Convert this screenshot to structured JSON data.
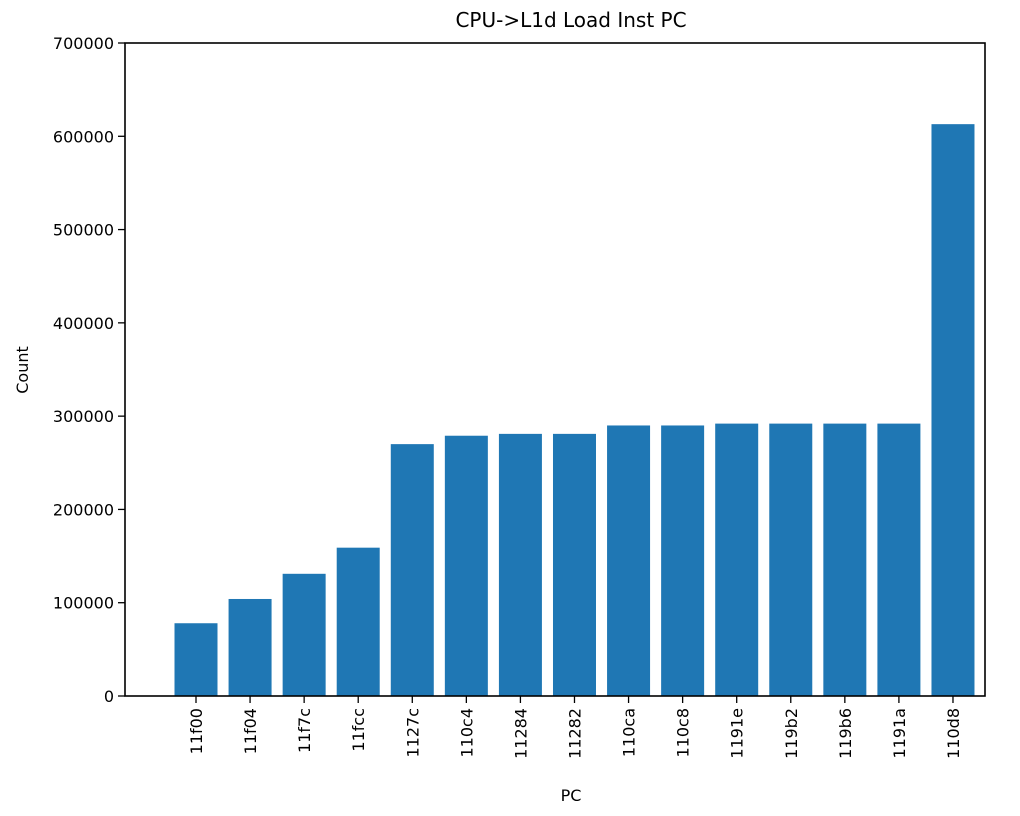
{
  "chart_data": {
    "type": "bar",
    "title": "CPU->L1d Load Inst PC",
    "xlabel": "PC",
    "ylabel": "Count",
    "categories": [
      "11f00",
      "11f04",
      "11f7c",
      "11fcc",
      "1127c",
      "110c4",
      "11284",
      "11282",
      "110ca",
      "110c8",
      "1191e",
      "119b2",
      "119b6",
      "1191a",
      "110d8"
    ],
    "values": [
      78000,
      104000,
      131000,
      159000,
      270000,
      279000,
      281000,
      281000,
      290000,
      290000,
      292000,
      292000,
      292000,
      292000,
      613000
    ],
    "ylim": [
      0,
      700000
    ],
    "yticks": [
      "0",
      "100000",
      "200000",
      "300000",
      "400000",
      "500000",
      "600000",
      "700000"
    ],
    "bar_color": "#1f77b4",
    "grid": false,
    "legend": "none"
  }
}
